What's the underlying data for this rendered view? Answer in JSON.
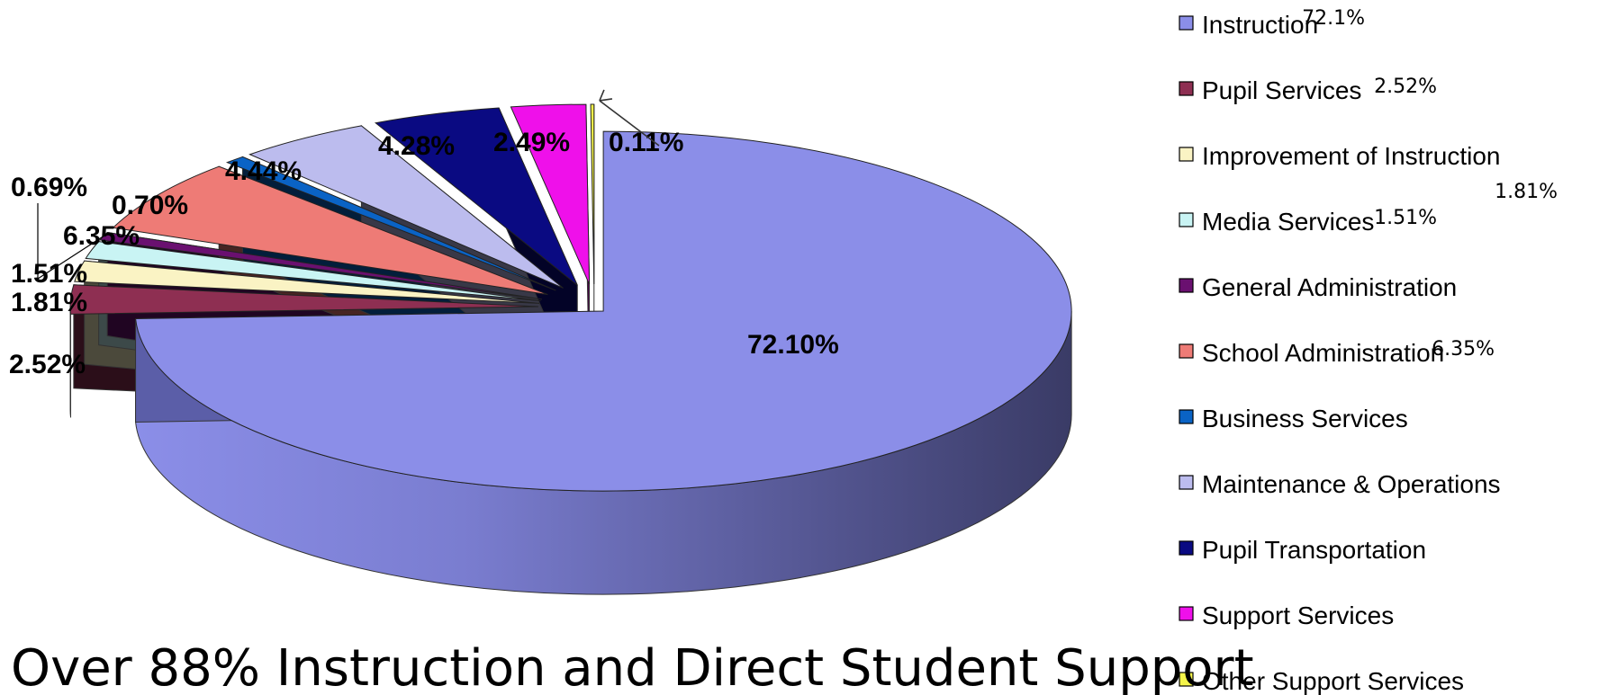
{
  "chart_data": {
    "type": "pie",
    "title": "",
    "categories": [
      "Instruction",
      "Pupil Services",
      "Improvement of Instruction",
      "Media Services",
      "General Administration",
      "School Administration",
      "Business Services",
      "Maintenance & Operations",
      "Pupil Transportation",
      "Support Services",
      "Other Support Services"
    ],
    "values": [
      72.1,
      2.52,
      1.81,
      1.51,
      0.69,
      6.35,
      0.7,
      4.44,
      4.28,
      2.49,
      0.11
    ],
    "data_labels": [
      "72.10%",
      "2.52%",
      "1.81%",
      "1.51%",
      "0.69%",
      "6.35%",
      "0.70%",
      "4.44%",
      "4.28%",
      "2.49%",
      "0.11%"
    ],
    "colors": [
      "#8b8ee8",
      "#8e2f52",
      "#faf3c4",
      "#c9f4f4",
      "#6a1070",
      "#ee7b76",
      "#0a63c5",
      "#bcbcee",
      "#0a0a82",
      "#ef10ea",
      "#f5f54a"
    ],
    "legend_placement": "right",
    "legend_extra_labels": [
      "72.1%",
      "2.52%",
      "1.81%",
      "1.51%",
      "",
      "6.35%",
      "",
      "",
      "",
      "",
      ""
    ],
    "exploded": true,
    "three_d": true
  },
  "headline": "Over 88% Instruction and Direct Student Support"
}
